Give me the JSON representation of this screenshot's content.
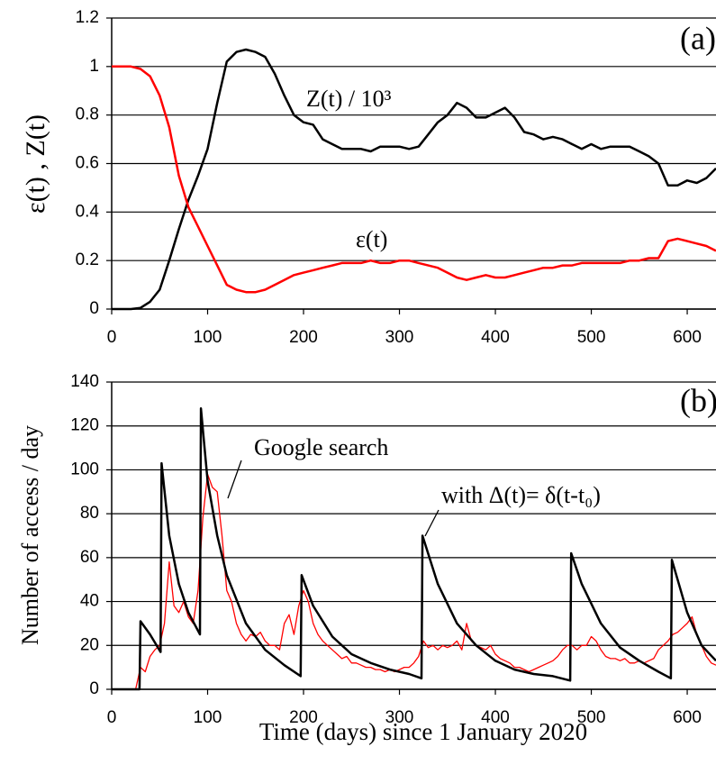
{
  "chart_data": [
    {
      "type": "line",
      "panel_label": "(a)",
      "ylabel": "ε(t) , Z(t)",
      "xlim": [
        0,
        630
      ],
      "ylim": [
        0,
        1.2
      ],
      "xticks": [
        0,
        100,
        200,
        300,
        400,
        500,
        600
      ],
      "yticks": [
        0,
        0.2,
        0.4,
        0.6,
        0.8,
        1,
        1.2
      ],
      "grid": true,
      "series": [
        {
          "name": "Z(t) / 10³",
          "color": "#000000",
          "x": [
            0,
            10,
            20,
            30,
            40,
            50,
            60,
            70,
            80,
            90,
            100,
            110,
            120,
            130,
            140,
            150,
            160,
            170,
            180,
            190,
            200,
            210,
            220,
            230,
            240,
            250,
            260,
            270,
            280,
            290,
            300,
            310,
            320,
            330,
            340,
            350,
            360,
            370,
            380,
            390,
            400,
            410,
            420,
            430,
            440,
            450,
            460,
            470,
            480,
            490,
            500,
            510,
            520,
            530,
            540,
            550,
            560,
            570,
            580,
            590,
            600,
            610,
            620,
            630
          ],
          "values": [
            0,
            0,
            0,
            0.005,
            0.03,
            0.08,
            0.2,
            0.33,
            0.45,
            0.55,
            0.66,
            0.85,
            1.02,
            1.06,
            1.07,
            1.06,
            1.04,
            0.97,
            0.88,
            0.8,
            0.77,
            0.76,
            0.7,
            0.68,
            0.66,
            0.66,
            0.66,
            0.65,
            0.67,
            0.67,
            0.67,
            0.66,
            0.67,
            0.72,
            0.77,
            0.8,
            0.85,
            0.83,
            0.79,
            0.79,
            0.81,
            0.83,
            0.79,
            0.73,
            0.72,
            0.7,
            0.71,
            0.7,
            0.68,
            0.66,
            0.68,
            0.66,
            0.67,
            0.67,
            0.67,
            0.65,
            0.63,
            0.6,
            0.51,
            0.51,
            0.53,
            0.52,
            0.54,
            0.58
          ]
        },
        {
          "name": "ε(t)",
          "color": "#ff0000",
          "x": [
            0,
            10,
            20,
            30,
            40,
            50,
            60,
            70,
            80,
            90,
            100,
            110,
            120,
            130,
            140,
            150,
            160,
            170,
            180,
            190,
            200,
            210,
            220,
            230,
            240,
            250,
            260,
            270,
            280,
            290,
            300,
            310,
            320,
            330,
            340,
            350,
            360,
            370,
            380,
            390,
            400,
            410,
            420,
            430,
            440,
            450,
            460,
            470,
            480,
            490,
            500,
            510,
            520,
            530,
            540,
            550,
            560,
            570,
            580,
            590,
            600,
            610,
            620,
            630
          ],
          "values": [
            1,
            1,
            1,
            0.99,
            0.96,
            0.88,
            0.75,
            0.55,
            0.42,
            0.34,
            0.26,
            0.18,
            0.1,
            0.08,
            0.07,
            0.07,
            0.08,
            0.1,
            0.12,
            0.14,
            0.15,
            0.16,
            0.17,
            0.18,
            0.19,
            0.19,
            0.19,
            0.2,
            0.19,
            0.19,
            0.2,
            0.2,
            0.19,
            0.18,
            0.17,
            0.15,
            0.13,
            0.12,
            0.13,
            0.14,
            0.13,
            0.13,
            0.14,
            0.15,
            0.16,
            0.17,
            0.17,
            0.18,
            0.18,
            0.19,
            0.19,
            0.19,
            0.19,
            0.19,
            0.2,
            0.2,
            0.21,
            0.21,
            0.28,
            0.29,
            0.28,
            0.27,
            0.26,
            0.24
          ]
        }
      ]
    },
    {
      "type": "line",
      "panel_label": "(b)",
      "ylabel": "Number of access / day",
      "xlabel": "Time (days) since 1 January 2020",
      "xlim": [
        0,
        630
      ],
      "ylim": [
        0,
        140
      ],
      "xticks": [
        0,
        100,
        200,
        300,
        400,
        500,
        600
      ],
      "yticks": [
        0,
        20,
        40,
        60,
        80,
        100,
        120,
        140
      ],
      "grid": true,
      "series": [
        {
          "name": "Google search",
          "color": "#ff0000",
          "x": [
            0,
            5,
            10,
            15,
            20,
            25,
            30,
            35,
            40,
            45,
            50,
            55,
            60,
            65,
            70,
            75,
            80,
            85,
            90,
            95,
            100,
            105,
            110,
            115,
            120,
            125,
            130,
            135,
            140,
            145,
            150,
            155,
            160,
            165,
            170,
            175,
            180,
            185,
            190,
            195,
            200,
            205,
            210,
            215,
            220,
            225,
            230,
            235,
            240,
            245,
            250,
            255,
            260,
            265,
            270,
            275,
            280,
            285,
            290,
            295,
            300,
            305,
            310,
            315,
            320,
            325,
            330,
            335,
            340,
            345,
            350,
            355,
            360,
            365,
            370,
            375,
            380,
            385,
            390,
            395,
            400,
            405,
            410,
            415,
            420,
            425,
            430,
            435,
            440,
            445,
            450,
            455,
            460,
            465,
            470,
            475,
            480,
            485,
            490,
            495,
            500,
            505,
            510,
            515,
            520,
            525,
            530,
            535,
            540,
            545,
            550,
            555,
            560,
            565,
            570,
            575,
            580,
            585,
            590,
            595,
            600,
            605,
            610,
            615,
            620,
            625,
            630
          ],
          "values": [
            0,
            0,
            0,
            0,
            0,
            0,
            10,
            8,
            15,
            18,
            20,
            30,
            58,
            38,
            35,
            40,
            33,
            30,
            45,
            78,
            98,
            92,
            90,
            70,
            45,
            40,
            30,
            25,
            22,
            25,
            24,
            26,
            22,
            20,
            20,
            18,
            30,
            34,
            25,
            38,
            45,
            40,
            30,
            25,
            22,
            20,
            18,
            16,
            14,
            15,
            12,
            12,
            11,
            10,
            10,
            9,
            9,
            8,
            9,
            8,
            9,
            10,
            10,
            12,
            15,
            22,
            19,
            20,
            18,
            20,
            19,
            20,
            22,
            18,
            30,
            22,
            20,
            19,
            18,
            20,
            16,
            14,
            13,
            12,
            10,
            10,
            9,
            8,
            9,
            10,
            11,
            12,
            13,
            15,
            18,
            20,
            20,
            18,
            20,
            20,
            24,
            22,
            18,
            15,
            14,
            14,
            13,
            14,
            12,
            12,
            13,
            12,
            13,
            14,
            18,
            20,
            22,
            25,
            26,
            28,
            30,
            33,
            25,
            20,
            15,
            12,
            11
          ]
        },
        {
          "name": "with Δ(t)= δ(t-t₀)",
          "color": "#000000",
          "x": [
            0,
            29,
            30,
            40,
            51,
            52,
            60,
            70,
            80,
            92,
            93,
            100,
            110,
            120,
            140,
            160,
            180,
            197,
            198,
            210,
            230,
            250,
            270,
            290,
            310,
            323,
            324,
            340,
            360,
            380,
            400,
            420,
            440,
            460,
            478,
            479,
            490,
            510,
            530,
            550,
            570,
            583,
            584,
            600,
            615,
            630
          ],
          "values": [
            0,
            0,
            31,
            25,
            17,
            103,
            70,
            48,
            35,
            25,
            128,
            95,
            70,
            52,
            30,
            18,
            11,
            6,
            52,
            38,
            24,
            16,
            12,
            9,
            7,
            5,
            70,
            48,
            30,
            20,
            13,
            9,
            7,
            6,
            4,
            62,
            48,
            30,
            19,
            13,
            8,
            5,
            59,
            35,
            20,
            13
          ]
        }
      ]
    }
  ]
}
